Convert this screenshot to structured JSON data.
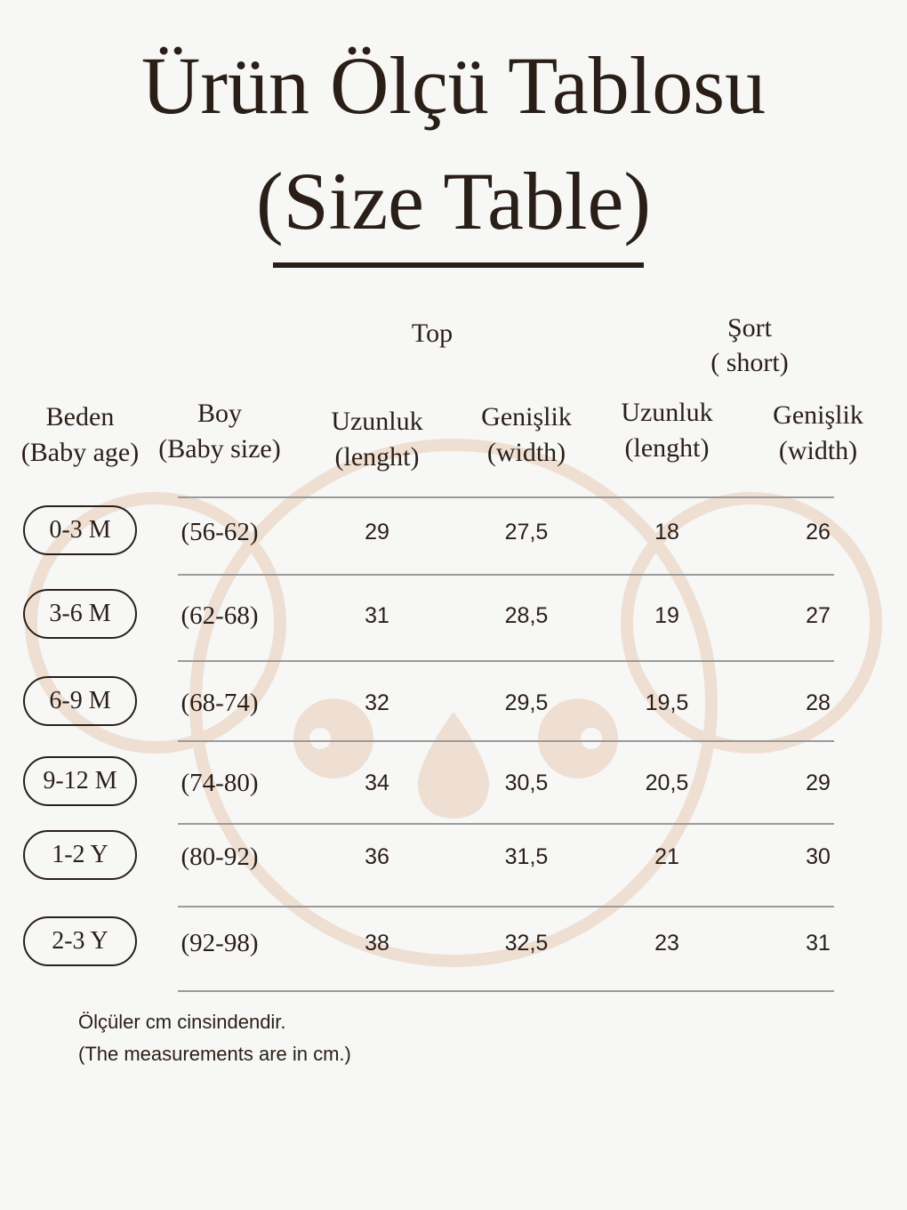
{
  "title_line1": "Ürün Ölçü Tablosu",
  "title_line2": "(Size Table)",
  "groups": {
    "top": "Top",
    "short_line1": "Şort",
    "short_line2": "( short)"
  },
  "columns": [
    {
      "l1": "Beden",
      "l2": "(Baby age)"
    },
    {
      "l1": "Boy",
      "l2": "(Baby size)"
    },
    {
      "l1": "Uzunluk",
      "l2": "(lenght)"
    },
    {
      "l1": "Genişlik",
      "l2": "(width)"
    },
    {
      "l1": "Uzunluk",
      "l2": "(lenght)"
    },
    {
      "l1": "Genişlik",
      "l2": "(width)"
    }
  ],
  "rows": [
    [
      "0-3 M",
      "(56-62)",
      "29",
      "27,5",
      "18",
      "26"
    ],
    [
      "3-6 M",
      "(62-68)",
      "31",
      "28,5",
      "19",
      "27"
    ],
    [
      "6-9 M",
      "(68-74)",
      "32",
      "29,5",
      "19,5",
      "28"
    ],
    [
      "9-12 M",
      "(74-80)",
      "34",
      "30,5",
      "20,5",
      "29"
    ],
    [
      "1-2 Y",
      "(80-92)",
      "36",
      "31,5",
      "21",
      "30"
    ],
    [
      "2-3 Y",
      "(92-98)",
      "38",
      "32,5",
      "23",
      "31"
    ]
  ],
  "notes": [
    "Ölçüler cm cinsindendir.",
    "(The measurements are in cm.)"
  ],
  "colors": {
    "text": "#2a1f18",
    "background": "#f7f7f6",
    "watermark": "#efdfd3"
  },
  "watermark_icon": "koala-icon"
}
